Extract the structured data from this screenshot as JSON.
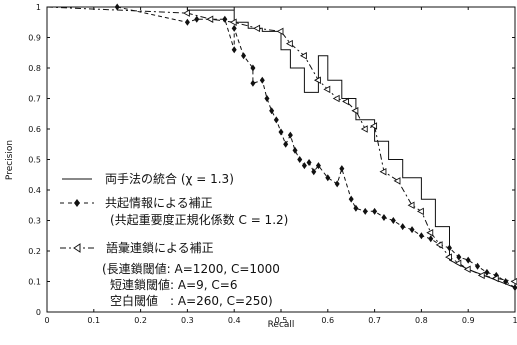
{
  "chart_data": {
    "type": "line",
    "xlabel": "Recall",
    "ylabel": "Precision",
    "xlim": [
      0,
      1
    ],
    "ylim": [
      0,
      1
    ],
    "xticks": [
      "0",
      "0.1",
      "0.2",
      "0.3",
      "0.4",
      "0.5",
      "0.6",
      "0.7",
      "0.8",
      "0.9",
      "1"
    ],
    "yticks": [
      "0",
      "0.1",
      "0.2",
      "0.3",
      "0.4",
      "0.5",
      "0.6",
      "0.7",
      "0.8",
      "0.9",
      "1"
    ],
    "grid": false,
    "legend_placement": "lower-left",
    "series": [
      {
        "name": "両手法の統合 (χ = 1.3)",
        "style": "solid-step",
        "color": "#111111",
        "x": [
          0.0,
          0.2,
          0.3,
          0.3,
          0.4,
          0.4,
          0.43,
          0.43,
          0.46,
          0.46,
          0.5,
          0.5,
          0.52,
          0.52,
          0.55,
          0.55,
          0.58,
          0.58,
          0.6,
          0.6,
          0.63,
          0.63,
          0.66,
          0.66,
          0.7,
          0.7,
          0.73,
          0.73,
          0.76,
          0.76,
          0.8,
          0.8,
          0.83,
          0.83,
          0.86,
          0.86,
          0.9,
          0.95,
          1.0
        ],
        "y": [
          1.0,
          1.0,
          1.0,
          0.99,
          0.99,
          0.95,
          0.95,
          0.93,
          0.93,
          0.92,
          0.92,
          0.86,
          0.86,
          0.8,
          0.8,
          0.72,
          0.72,
          0.84,
          0.84,
          0.76,
          0.76,
          0.7,
          0.7,
          0.63,
          0.63,
          0.56,
          0.56,
          0.5,
          0.5,
          0.44,
          0.44,
          0.37,
          0.37,
          0.28,
          0.28,
          0.17,
          0.14,
          0.11,
          0.08
        ]
      },
      {
        "name": "共起情報による補正",
        "name_line2": "(共起重要度正規化係数 C = 1.2)",
        "style": "dashed-diamond",
        "color": "#111111",
        "x": [
          0.0,
          0.15,
          0.3,
          0.32,
          0.38,
          0.4,
          0.4,
          0.42,
          0.44,
          0.44,
          0.46,
          0.47,
          0.48,
          0.49,
          0.5,
          0.51,
          0.52,
          0.53,
          0.54,
          0.55,
          0.56,
          0.57,
          0.58,
          0.6,
          0.62,
          0.63,
          0.65,
          0.66,
          0.68,
          0.7,
          0.72,
          0.74,
          0.76,
          0.78,
          0.8,
          0.82,
          0.84,
          0.86,
          0.88,
          0.9,
          0.92,
          0.94,
          0.96,
          0.98,
          1.0
        ],
        "y": [
          1.0,
          1.0,
          0.95,
          0.96,
          0.96,
          0.86,
          0.93,
          0.84,
          0.8,
          0.75,
          0.76,
          0.7,
          0.66,
          0.63,
          0.59,
          0.55,
          0.58,
          0.53,
          0.5,
          0.48,
          0.49,
          0.46,
          0.48,
          0.44,
          0.42,
          0.47,
          0.37,
          0.34,
          0.33,
          0.33,
          0.31,
          0.3,
          0.28,
          0.27,
          0.25,
          0.24,
          0.22,
          0.21,
          0.18,
          0.17,
          0.15,
          0.13,
          0.12,
          0.1,
          0.08
        ]
      },
      {
        "name": "語彙連鎖による補正",
        "name_line2": "(長連鎖閾値: A=1200, C=1000",
        "name_line3": "短連鎖閾値: A=9, C=6",
        "name_line4": "空白閾値　: A=260, C=250)",
        "style": "dashdot-triangle",
        "color": "#111111",
        "x": [
          0.0,
          0.3,
          0.35,
          0.4,
          0.45,
          0.5,
          0.52,
          0.55,
          0.58,
          0.6,
          0.62,
          0.64,
          0.66,
          0.68,
          0.7,
          0.72,
          0.75,
          0.78,
          0.8,
          0.82,
          0.84,
          0.86,
          0.88,
          0.9,
          0.93,
          0.96,
          1.0
        ],
        "y": [
          1.0,
          0.98,
          0.96,
          0.95,
          0.93,
          0.92,
          0.88,
          0.84,
          0.76,
          0.73,
          0.7,
          0.69,
          0.66,
          0.6,
          0.61,
          0.46,
          0.43,
          0.35,
          0.33,
          0.26,
          0.22,
          0.18,
          0.16,
          0.14,
          0.12,
          0.11,
          0.1
        ]
      }
    ]
  }
}
